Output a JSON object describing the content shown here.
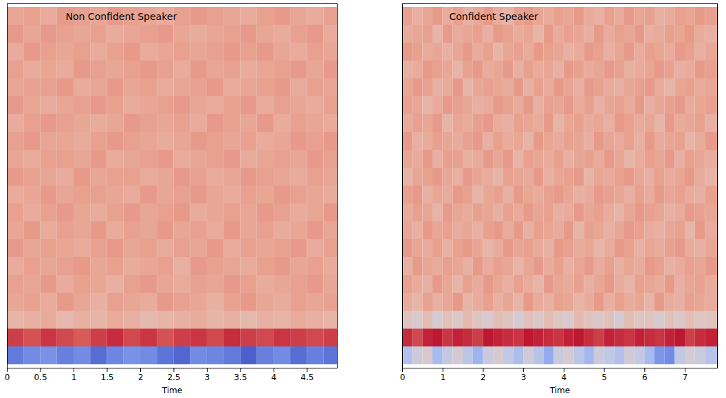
{
  "chart_data": [
    {
      "type": "heatmap",
      "title": "Non Confident Speaker",
      "x_label": "Time",
      "tick_labels": "x",
      "xlim": [
        0,
        4.95
      ],
      "xticks": [
        0,
        0.5,
        1,
        1.5,
        2,
        2.5,
        3,
        3.5,
        4,
        4.5
      ],
      "x": [
        0,
        0.25,
        0.5,
        0.75,
        1,
        1.25,
        1.5,
        1.75,
        2,
        2.25,
        2.5,
        2.75,
        3,
        3.25,
        3.5,
        3.75,
        4,
        4.25,
        4.5,
        4.75
      ],
      "color_domain": [
        -400,
        200
      ],
      "cells": [
        [
          -330,
          -300,
          -290,
          -320,
          -300,
          -350,
          -310,
          -290,
          -300,
          -340,
          -360,
          -300,
          -310,
          -330,
          -370,
          -320,
          -300,
          -350,
          -320,
          -340
        ],
        [
          140,
          120,
          150,
          130,
          110,
          140,
          160,
          130,
          150,
          120,
          140,
          150,
          130,
          160,
          140,
          130,
          150,
          140,
          130,
          140
        ],
        [
          -20,
          -10,
          0,
          -30,
          -10,
          -20,
          0,
          -10,
          -30,
          -20,
          -10,
          0,
          -20,
          -10,
          -30,
          -10,
          -20,
          0,
          -10,
          -20
        ],
        [
          10,
          20,
          0,
          30,
          10,
          -10,
          20,
          10,
          0,
          30,
          20,
          10,
          -10,
          20,
          30,
          10,
          0,
          20,
          10,
          20
        ],
        [
          20,
          10,
          30,
          0,
          20,
          10,
          -10,
          20,
          30,
          10,
          0,
          20,
          10,
          30,
          20,
          0,
          10,
          20,
          30,
          10
        ],
        [
          0,
          20,
          10,
          20,
          30,
          10,
          20,
          0,
          10,
          20,
          -10,
          30,
          20,
          10,
          0,
          20,
          30,
          10,
          20,
          0
        ],
        [
          30,
          10,
          20,
          10,
          0,
          20,
          30,
          10,
          20,
          0,
          20,
          10,
          30,
          0,
          20,
          10,
          20,
          30,
          0,
          20
        ],
        [
          10,
          30,
          0,
          20,
          10,
          30,
          0,
          20,
          10,
          30,
          10,
          20,
          0,
          30,
          10,
          20,
          0,
          10,
          30,
          10
        ],
        [
          20,
          0,
          20,
          30,
          10,
          0,
          20,
          30,
          10,
          20,
          30,
          0,
          10,
          20,
          10,
          30,
          20,
          0,
          10,
          30
        ],
        [
          0,
          10,
          30,
          10,
          20,
          20,
          10,
          0,
          30,
          10,
          20,
          30,
          10,
          0,
          20,
          10,
          30,
          20,
          10,
          0
        ],
        [
          30,
          20,
          10,
          0,
          30,
          10,
          20,
          20,
          0,
          10,
          30,
          20,
          0,
          10,
          30,
          20,
          10,
          0,
          20,
          10
        ],
        [
          10,
          0,
          20,
          20,
          10,
          30,
          0,
          10,
          20,
          30,
          0,
          10,
          20,
          30,
          0,
          10,
          20,
          10,
          30,
          20
        ],
        [
          20,
          30,
          10,
          10,
          0,
          20,
          30,
          20,
          10,
          0,
          10,
          30,
          20,
          10,
          20,
          0,
          10,
          30,
          20,
          30
        ],
        [
          0,
          20,
          30,
          20,
          10,
          0,
          10,
          30,
          20,
          10,
          20,
          0,
          30,
          20,
          10,
          30,
          0,
          20,
          10,
          0
        ],
        [
          30,
          10,
          0,
          10,
          20,
          30,
          20,
          0,
          10,
          20,
          30,
          10,
          0,
          20,
          30,
          0,
          20,
          10,
          0,
          20
        ],
        [
          10,
          20,
          20,
          30,
          0,
          10,
          30,
          10,
          20,
          0,
          10,
          20,
          30,
          0,
          10,
          20,
          30,
          0,
          20,
          10
        ],
        [
          20,
          0,
          10,
          0,
          30,
          20,
          10,
          20,
          30,
          20,
          0,
          30,
          10,
          20,
          0,
          10,
          20,
          30,
          10,
          30
        ],
        [
          0,
          30,
          20,
          10,
          20,
          0,
          20,
          30,
          0,
          10,
          20,
          10,
          20,
          30,
          20,
          30,
          10,
          0,
          20,
          10
        ],
        [
          30,
          10,
          30,
          20,
          10,
          20,
          0,
          10,
          20,
          30,
          10,
          0,
          10,
          20,
          30,
          10,
          0,
          20,
          30,
          0
        ],
        [
          10,
          20,
          0,
          30,
          20,
          10,
          30,
          20,
          10,
          0,
          20,
          30,
          20,
          10,
          0,
          20,
          30,
          10,
          0,
          20
        ]
      ]
    },
    {
      "type": "heatmap",
      "title": "Confident Speaker",
      "x_label": "Time",
      "tick_labels": "x",
      "xlim": [
        0,
        7.8
      ],
      "xticks": [
        0,
        1,
        2,
        3,
        4,
        5,
        6,
        7
      ],
      "x": [
        0,
        0.25,
        0.5,
        0.75,
        1,
        1.25,
        1.5,
        1.75,
        2,
        2.25,
        2.5,
        2.75,
        3,
        3.25,
        3.5,
        3.75,
        4,
        4.25,
        4.5,
        4.75,
        5,
        5.25,
        5.5,
        5.75,
        6,
        6.25,
        6.5,
        6.75,
        7,
        7.25,
        7.5
      ],
      "color_domain": [
        -400,
        200
      ],
      "cells": [
        [
          -180,
          -120,
          -90,
          -200,
          -140,
          -100,
          -160,
          -220,
          -130,
          -90,
          -150,
          -190,
          -110,
          -170,
          -240,
          -130,
          -100,
          -160,
          -210,
          -120,
          -150,
          -180,
          -110,
          -140,
          -200,
          -280,
          -300,
          -150,
          -100,
          -130,
          -170
        ],
        [
          160,
          130,
          170,
          180,
          150,
          170,
          160,
          140,
          180,
          170,
          160,
          150,
          180,
          170,
          160,
          150,
          170,
          180,
          160,
          140,
          170,
          160,
          150,
          170,
          160,
          150,
          170,
          180,
          140,
          160,
          170
        ],
        [
          -60,
          -90,
          -40,
          -100,
          -50,
          -80,
          -30,
          -70,
          -90,
          -40,
          -60,
          -100,
          -50,
          -80,
          -40,
          -70,
          -90,
          -30,
          -60,
          -80,
          -50,
          -100,
          -40,
          -70,
          -60,
          -90,
          -50,
          -80,
          -40,
          -70,
          -60
        ],
        [
          0,
          -20,
          20,
          -10,
          10,
          30,
          -20,
          0,
          20,
          -10,
          10,
          -20,
          30,
          0,
          -10,
          20,
          10,
          -20,
          0,
          30,
          -10,
          20,
          0,
          10,
          -20,
          30,
          0,
          -10,
          20,
          10,
          0
        ],
        [
          20,
          0,
          -10,
          30,
          10,
          -20,
          20,
          0,
          30,
          10,
          -10,
          20,
          0,
          -20,
          30,
          10,
          0,
          20,
          -10,
          10,
          30,
          0,
          -20,
          20,
          10,
          0,
          30,
          -10,
          10,
          20,
          0
        ],
        [
          -10,
          30,
          10,
          0,
          20,
          10,
          -10,
          30,
          0,
          20,
          10,
          -20,
          10,
          30,
          0,
          20,
          -10,
          10,
          30,
          0,
          20,
          -10,
          10,
          0,
          30,
          20,
          -10,
          0,
          20,
          10,
          30
        ],
        [
          30,
          10,
          0,
          20,
          -10,
          20,
          30,
          10,
          -20,
          0,
          30,
          10,
          20,
          0,
          -10,
          30,
          20,
          0,
          10,
          -20,
          0,
          30,
          20,
          -10,
          10,
          0,
          20,
          30,
          0,
          -10,
          10
        ],
        [
          10,
          -10,
          30,
          10,
          20,
          0,
          10,
          -10,
          20,
          30,
          0,
          30,
          -10,
          20,
          10,
          0,
          30,
          -20,
          20,
          10,
          -10,
          10,
          30,
          20,
          0,
          -10,
          10,
          20,
          -20,
          30,
          0
        ],
        [
          0,
          20,
          10,
          -20,
          30,
          10,
          0,
          20,
          10,
          -10,
          20,
          0,
          30,
          10,
          20,
          -10,
          0,
          30,
          10,
          20,
          0,
          -20,
          10,
          30,
          20,
          10,
          -10,
          0,
          30,
          20,
          10
        ],
        [
          20,
          30,
          -10,
          10,
          0,
          30,
          20,
          -20,
          10,
          20,
          -10,
          30,
          10,
          0,
          20,
          30,
          10,
          -10,
          0,
          30,
          20,
          10,
          -10,
          20,
          0,
          30,
          10,
          20,
          0,
          -10,
          20
        ],
        [
          -20,
          10,
          20,
          30,
          10,
          -10,
          30,
          10,
          0,
          -20,
          20,
          10,
          0,
          30,
          -10,
          10,
          20,
          30,
          -20,
          10,
          0,
          20,
          30,
          10,
          -10,
          20,
          0,
          10,
          30,
          0,
          -20
        ],
        [
          10,
          0,
          30,
          -10,
          20,
          20,
          -10,
          0,
          30,
          10,
          30,
          -20,
          20,
          10,
          0,
          20,
          -10,
          10,
          20,
          0,
          30,
          10,
          -20,
          0,
          20,
          10,
          30,
          -10,
          20,
          10,
          0
        ],
        [
          30,
          -10,
          0,
          20,
          10,
          0,
          20,
          30,
          -10,
          20,
          0,
          10,
          -20,
          30,
          10,
          0,
          20,
          10,
          -10,
          30,
          10,
          0,
          20,
          -10,
          30,
          0,
          10,
          20,
          -20,
          0,
          30
        ],
        [
          0,
          20,
          10,
          30,
          -20,
          10,
          0,
          20,
          30,
          0,
          -10,
          20,
          10,
          0,
          30,
          -20,
          10,
          20,
          0,
          10,
          -10,
          30,
          20,
          0,
          10,
          -20,
          30,
          0,
          10,
          20,
          -10
        ],
        [
          20,
          10,
          -20,
          0,
          30,
          20,
          10,
          -10,
          0,
          30,
          20,
          0,
          30,
          -10,
          20,
          10,
          30,
          0,
          20,
          -10,
          10,
          20,
          0,
          30,
          -10,
          10,
          20,
          30,
          0,
          10,
          20
        ],
        [
          10,
          30,
          20,
          -10,
          0,
          30,
          -20,
          10,
          20,
          10,
          0,
          30,
          -10,
          20,
          0,
          30,
          10,
          -10,
          30,
          20,
          0,
          -10,
          10,
          20,
          30,
          0,
          -20,
          10,
          20,
          0,
          10
        ],
        [
          -10,
          0,
          30,
          20,
          10,
          -20,
          20,
          30,
          0,
          10,
          30,
          -10,
          20,
          0,
          10,
          -10,
          30,
          20,
          0,
          10,
          30,
          20,
          -10,
          0,
          10,
          30,
          20,
          -10,
          0,
          30,
          20
        ],
        [
          30,
          20,
          0,
          10,
          -10,
          10,
          30,
          0,
          20,
          -20,
          10,
          20,
          0,
          30,
          20,
          10,
          -10,
          0,
          30,
          20,
          -10,
          10,
          30,
          0,
          20,
          10,
          0,
          30,
          20,
          -10,
          10
        ],
        [
          0,
          10,
          20,
          -20,
          30,
          0,
          10,
          20,
          -10,
          30,
          20,
          0,
          10,
          -20,
          30,
          0,
          20,
          10,
          -10,
          30,
          0,
          20,
          10,
          30,
          -10,
          0,
          20,
          10,
          30,
          0,
          -10
        ],
        [
          20,
          -10,
          10,
          30,
          0,
          20,
          -10,
          10,
          30,
          0,
          -20,
          20,
          30,
          10,
          0,
          20,
          10,
          30,
          0,
          -10,
          20,
          0,
          30,
          10,
          20,
          -10,
          0,
          20,
          10,
          30,
          20
        ]
      ]
    }
  ]
}
